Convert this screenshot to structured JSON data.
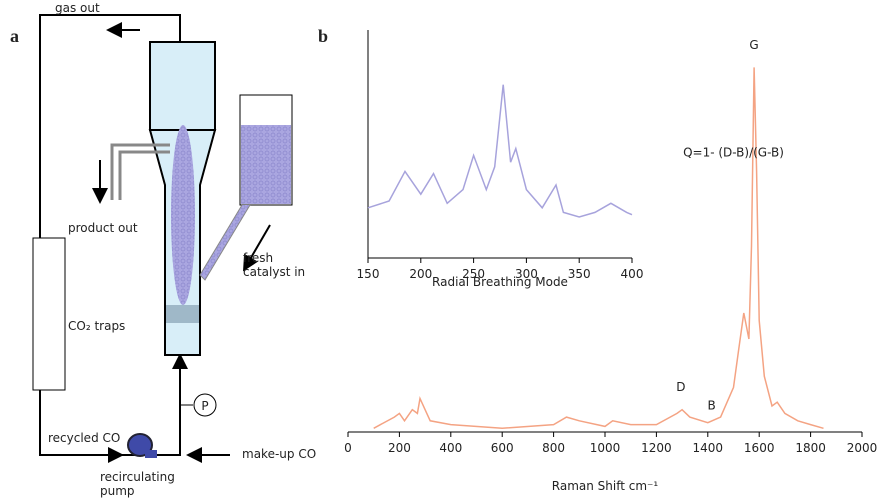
{
  "panel_a": {
    "label": "a",
    "gas_out": "gas out",
    "product_out": "product out",
    "fresh_catalyst": "fresh\ncatalyst in",
    "traps": "CO₂ traps",
    "recycled": "recycled CO",
    "pump": "recirculating\npump",
    "makeup": "make-up CO",
    "pressure": "P"
  },
  "panel_b_label": "b",
  "chart_data": [
    {
      "type": "line",
      "xlabel": "Raman Shift cm⁻¹",
      "xlim": [
        0,
        2000
      ],
      "xticks": [
        0,
        200,
        400,
        600,
        800,
        1000,
        1200,
        1400,
        1600,
        1800,
        2000
      ],
      "ylim": [
        0,
        100
      ],
      "annotations": [
        {
          "text": "G",
          "x": 1580,
          "y": 103
        },
        {
          "text": "D",
          "x": 1295,
          "y": 11
        },
        {
          "text": "B",
          "x": 1415,
          "y": 6
        },
        {
          "text": "Q=1- (D-B)/(G-B)",
          "x": 1500,
          "y": 74
        }
      ],
      "series": [
        {
          "color": "#f4a383",
          "x": [
            100,
            180,
            200,
            220,
            250,
            270,
            280,
            300,
            320,
            400,
            600,
            800,
            850,
            900,
            1000,
            1030,
            1100,
            1200,
            1280,
            1300,
            1330,
            1400,
            1450,
            1500,
            1520,
            1540,
            1560,
            1570,
            1580,
            1590,
            1600,
            1620,
            1650,
            1670,
            1700,
            1750,
            1800,
            1850
          ],
          "values": [
            1,
            4,
            5,
            3,
            6,
            5,
            9,
            6,
            3,
            2,
            1,
            2,
            4,
            3,
            1.5,
            3,
            2,
            2,
            5,
            6,
            4,
            2.5,
            4,
            12,
            22,
            32,
            25,
            50,
            98,
            70,
            30,
            15,
            7,
            8,
            5,
            3,
            2,
            1
          ]
        }
      ]
    },
    {
      "type": "line",
      "xlabel": "Radial Breathing Mode",
      "xlim": [
        150,
        400
      ],
      "xticks": [
        150,
        200,
        250,
        300,
        350,
        400
      ],
      "ylim": [
        0,
        100
      ],
      "series": [
        {
          "color": "#a7a3dc",
          "x": [
            150,
            170,
            185,
            200,
            212,
            225,
            240,
            250,
            262,
            270,
            278,
            285,
            290,
            300,
            315,
            328,
            335,
            350,
            365,
            380,
            395,
            400
          ],
          "values": [
            22,
            25,
            38,
            28,
            37,
            24,
            30,
            45,
            30,
            40,
            76,
            42,
            48,
            30,
            22,
            32,
            20,
            18,
            20,
            24,
            20,
            19
          ]
        }
      ]
    }
  ]
}
